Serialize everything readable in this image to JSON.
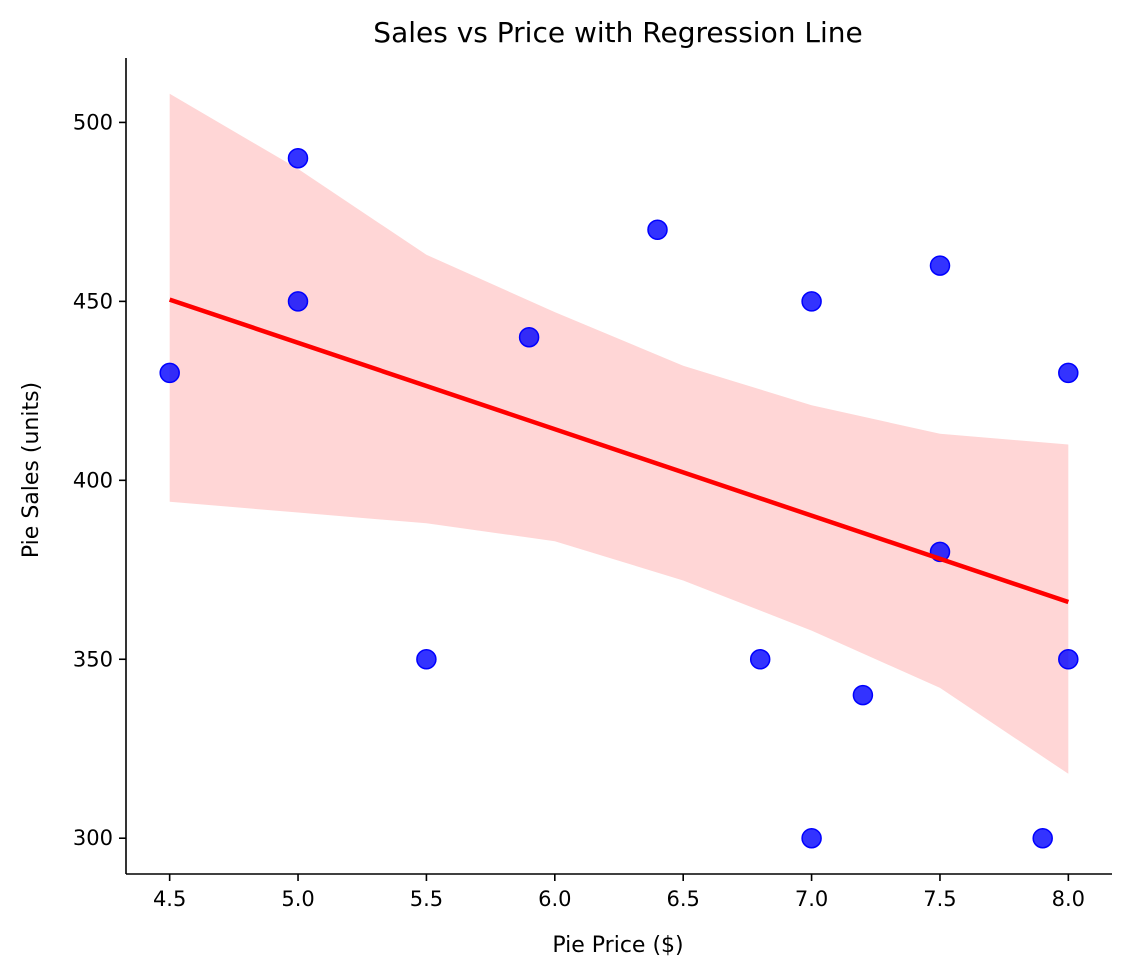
{
  "chart_data": {
    "type": "scatter",
    "title": "Sales vs Price with Regression Line",
    "xlabel": "Pie Price ($)",
    "ylabel": "Pie Sales (units)",
    "xlim": [
      4.33,
      8.17
    ],
    "ylim": [
      290,
      518
    ],
    "xticks": [
      4.5,
      5.0,
      5.5,
      6.0,
      6.5,
      7.0,
      7.5,
      8.0
    ],
    "xtick_labels": [
      "4.5",
      "5.0",
      "5.5",
      "6.0",
      "6.5",
      "7.0",
      "7.5",
      "8.0"
    ],
    "yticks": [
      300,
      350,
      400,
      450,
      500
    ],
    "ytick_labels": [
      "300",
      "350",
      "400",
      "450",
      "500"
    ],
    "grid": false,
    "points": {
      "x": [
        4.5,
        5.0,
        5.0,
        5.5,
        5.9,
        6.4,
        6.8,
        7.0,
        7.0,
        7.2,
        7.5,
        7.5,
        7.9,
        8.0,
        8.0
      ],
      "y": [
        430,
        490,
        450,
        350,
        440,
        470,
        350,
        450,
        300,
        340,
        460,
        380,
        300,
        430,
        350
      ],
      "color": "#0000ff"
    },
    "regression": {
      "x": [
        4.5,
        8.0
      ],
      "y": [
        450.5,
        366
      ],
      "color": "#ff0000"
    },
    "confidence_band": {
      "color": "#ffd6d6",
      "x": [
        4.5,
        5.0,
        5.5,
        6.0,
        6.5,
        7.0,
        7.5,
        8.0
      ],
      "upper": [
        508,
        487,
        463,
        447,
        432,
        421,
        413,
        410
      ],
      "lower": [
        394,
        391,
        388,
        383,
        372,
        358,
        342,
        318
      ]
    }
  }
}
